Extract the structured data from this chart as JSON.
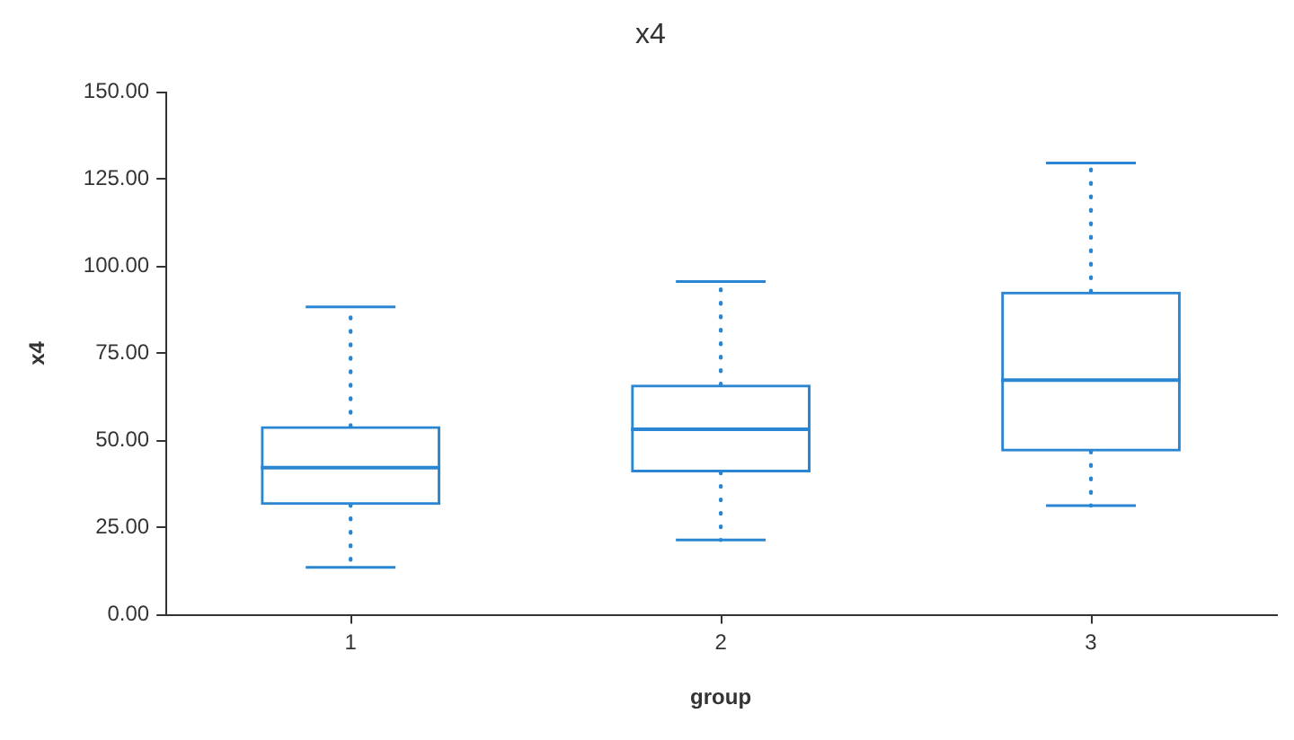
{
  "chart_data": {
    "type": "box",
    "title": "x4",
    "xlabel": "group",
    "ylabel": "x4",
    "categories": [
      "1",
      "2",
      "3"
    ],
    "color": "#2a86d2",
    "line_style": "dotted",
    "boxes": [
      {
        "low": 13.6,
        "q1": 31.5,
        "median": 42.2,
        "q3": 54.1,
        "high": 88.3
      },
      {
        "low": 21.4,
        "q1": 40.8,
        "median": 53.2,
        "q3": 66.0,
        "high": 95.6
      },
      {
        "low": 31.3,
        "q1": 46.8,
        "median": 67.3,
        "q3": 92.7,
        "high": 129.6
      }
    ],
    "ylim": [
      0,
      150
    ],
    "yticks": [
      {
        "value": 0,
        "label": "0.00"
      },
      {
        "value": 25,
        "label": "25.00"
      },
      {
        "value": 50,
        "label": "50.00"
      },
      {
        "value": 75,
        "label": "75.00"
      },
      {
        "value": 100,
        "label": "100.00"
      },
      {
        "value": 125,
        "label": "125.00"
      },
      {
        "value": 150,
        "label": "150.00"
      }
    ]
  }
}
